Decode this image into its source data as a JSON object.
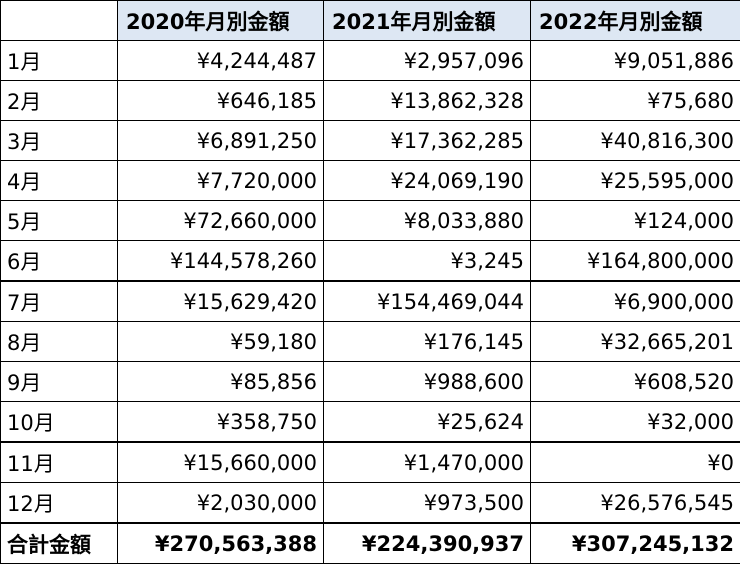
{
  "table": {
    "header": [
      "2020年月別金額",
      "2021年月別金額",
      "2022年月別金額"
    ],
    "rows": [
      {
        "label": "1月",
        "values": [
          "¥4,244,487",
          "¥2,957,096",
          "¥9,051,886"
        ]
      },
      {
        "label": "2月",
        "values": [
          "¥646,185",
          "¥13,862,328",
          "¥75,680"
        ]
      },
      {
        "label": "3月",
        "values": [
          "¥6,891,250",
          "¥17,362,285",
          "¥40,816,300"
        ]
      },
      {
        "label": "4月",
        "values": [
          "¥7,720,000",
          "¥24,069,190",
          "¥25,595,000"
        ]
      },
      {
        "label": "5月",
        "values": [
          "¥72,660,000",
          "¥8,033,880",
          "¥124,000"
        ]
      },
      {
        "label": "6月",
        "values": [
          "¥144,578,260",
          "¥3,245",
          "¥164,800,000"
        ]
      },
      {
        "label": "7月",
        "values": [
          "¥15,629,420",
          "¥154,469,044",
          "¥6,900,000"
        ]
      },
      {
        "label": "8月",
        "values": [
          "¥59,180",
          "¥176,145",
          "¥32,665,201"
        ]
      },
      {
        "label": "9月",
        "values": [
          "¥85,856",
          "¥988,600",
          "¥608,520"
        ]
      },
      {
        "label": "10月",
        "values": [
          "¥358,750",
          "¥25,624",
          "¥32,000"
        ]
      },
      {
        "label": "11月",
        "values": [
          "¥15,660,000",
          "¥1,470,000",
          "¥0"
        ]
      },
      {
        "label": "12月",
        "values": [
          "¥2,030,000",
          "¥973,500",
          "¥26,576,545"
        ]
      }
    ],
    "total": {
      "label": "合計金額",
      "values": [
        "¥270,563,388",
        "¥224,390,937",
        "¥307,245,132"
      ]
    }
  }
}
